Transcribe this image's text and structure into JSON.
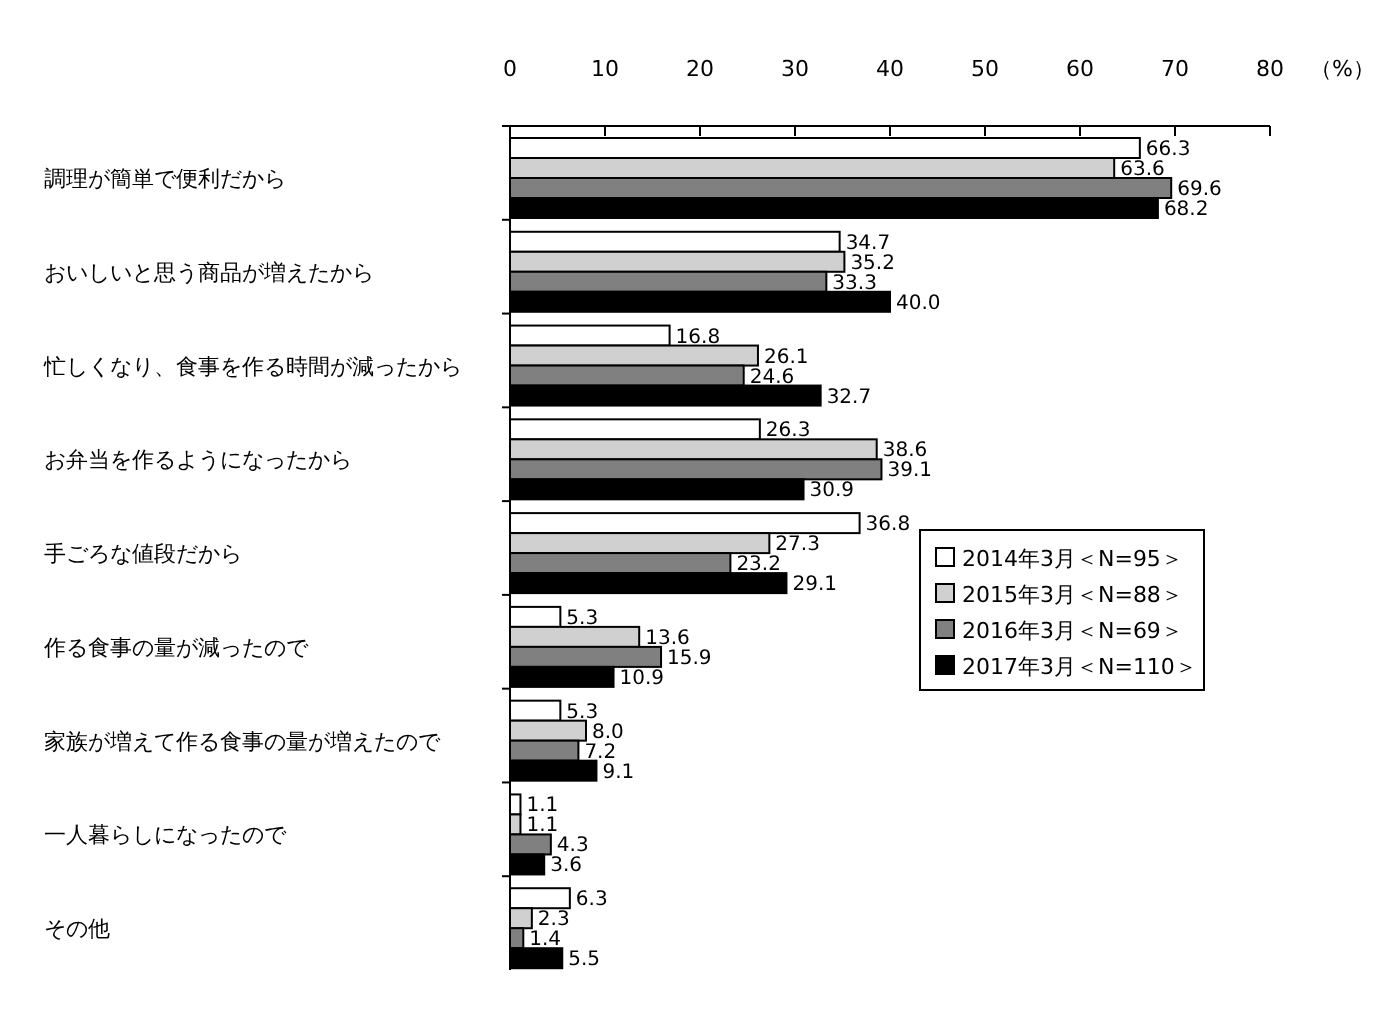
{
  "chart_data": {
    "type": "bar",
    "orientation": "horizontal",
    "xlabel": "（%）",
    "categories": [
      "調理が簡単で便利だから",
      "おいしいと思う商品が増えたから",
      "忙しくなり、食事を作る時間が減ったから",
      "お弁当を作るようになったから",
      "手ごろな値段だから",
      "作る食事の量が減ったので",
      "家族が増えて作る食事の量が増えたので",
      "一人暮らしになったので",
      "その他"
    ],
    "series": [
      {
        "name": "2014年3月＜N=95＞",
        "color": "#ffffff",
        "values": [
          66.3,
          34.7,
          16.8,
          26.3,
          36.8,
          5.3,
          5.3,
          1.1,
          6.3
        ],
        "value_labels": [
          "66.3",
          "34.7",
          "16.8",
          "26.3",
          "36.8",
          "5.3",
          "5.3",
          "1.1",
          "6.3"
        ]
      },
      {
        "name": "2015年3月＜N=88＞",
        "color": "#d0d0d0",
        "values": [
          63.6,
          35.2,
          26.1,
          38.6,
          27.3,
          13.6,
          8.0,
          1.1,
          2.3
        ],
        "value_labels": [
          "63.6",
          "35.2",
          "26.1",
          "38.6",
          "27.3",
          "13.6",
          "8.0",
          "1.1",
          "2.3"
        ]
      },
      {
        "name": "2016年3月＜N=69＞",
        "color": "#808080",
        "values": [
          69.6,
          33.3,
          24.6,
          39.1,
          23.2,
          15.9,
          7.2,
          4.3,
          1.4
        ],
        "value_labels": [
          "69.6",
          "33.3",
          "24.6",
          "39.1",
          "23.2",
          "15.9",
          "7.2",
          "4.3",
          "1.4"
        ]
      },
      {
        "name": "2017年3月＜N=110＞",
        "color": "#000000",
        "values": [
          68.2,
          40.0,
          32.7,
          30.9,
          29.1,
          10.9,
          9.1,
          3.6,
          5.5
        ],
        "value_labels": [
          "68.2",
          "40.0",
          "32.7",
          "30.9",
          "29.1",
          "10.9",
          "9.1",
          "3.6",
          "5.5"
        ]
      }
    ],
    "xlim": [
      0,
      80
    ],
    "xticks": [
      0,
      10,
      20,
      30,
      40,
      50,
      60,
      70,
      80
    ],
    "legend": "right",
    "grid": false
  }
}
